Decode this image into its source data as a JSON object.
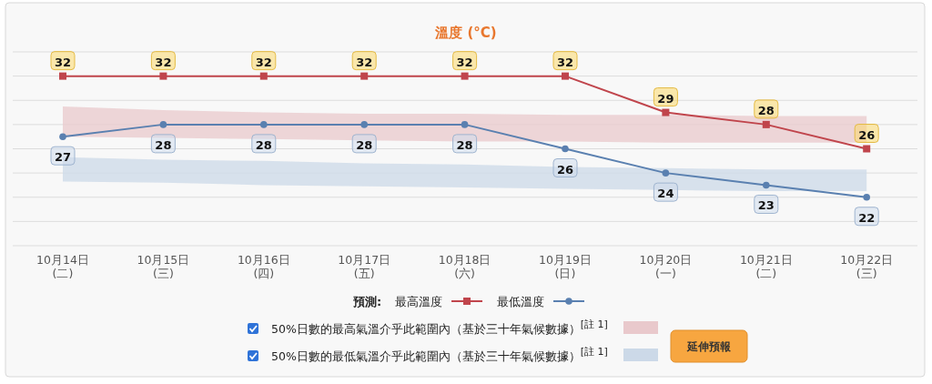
{
  "chart_data": {
    "type": "line",
    "title": "溫度 (°C)",
    "categories": [
      "10月14日\n(二)",
      "10月15日\n(三)",
      "10月16日\n(四)",
      "10月17日\n(五)",
      "10月18日\n(六)",
      "10月19日\n(日)",
      "10月20日\n(一)",
      "10月21日\n(二)",
      "10月22日\n(三)"
    ],
    "ylim": [
      18,
      34
    ],
    "yticks": [
      {
        "value": 18,
        "label": null
      },
      {
        "value": 20,
        "label": null
      },
      {
        "value": 22,
        "label": null
      },
      {
        "value": 24,
        "label": null
      },
      {
        "value": 26,
        "label": null
      },
      {
        "value": 28,
        "label": null
      },
      {
        "value": 30,
        "label": null
      },
      {
        "value": 32,
        "label": null
      },
      {
        "value": 34,
        "label": null
      }
    ],
    "tick_labels": "x",
    "grid": "y",
    "legend": "bottom",
    "legend_title": "預測:",
    "data_labels": true,
    "series": [
      {
        "type": "area",
        "name": "50%日數的最高氣溫介乎此範圍內（基於三十年氣候數據）$^{[註 1]}$",
        "color": "#e9c9cc",
        "values": [
          null,
          null,
          null,
          null,
          null,
          null,
          null,
          null,
          null
        ],
        "lower": [
          27.0,
          26.9,
          26.8,
          26.7,
          26.6,
          26.6,
          26.5,
          26.5,
          26.5
        ],
        "upper": [
          29.5,
          29.2,
          29.0,
          28.9,
          28.9,
          28.8,
          28.8,
          28.7,
          28.7
        ]
      },
      {
        "type": "area",
        "name": "50%日數的最低氣溫介乎此範圍內（基於三十年氣候數據）$^{[註 1]}$",
        "color": "#ccd9e8",
        "values": [
          null,
          null,
          null,
          null,
          null,
          null,
          null,
          null,
          null
        ],
        "lower": [
          23.3,
          23.2,
          23.0,
          22.9,
          22.8,
          22.7,
          22.6,
          22.5,
          22.5
        ],
        "upper": [
          25.3,
          25.1,
          25.0,
          24.8,
          24.7,
          24.5,
          24.4,
          24.3,
          24.3
        ]
      },
      {
        "name": "最高溫度",
        "color": "#c0454c",
        "marker": "square",
        "values": [
          32,
          32,
          32,
          32,
          32,
          32,
          29,
          28,
          26
        ]
      },
      {
        "name": "最低溫度",
        "color": "#5a80b0",
        "marker": "circle",
        "values": [
          27,
          28,
          28,
          28,
          28,
          26,
          24,
          23,
          22
        ]
      }
    ],
    "annotations": [
      "延伸預報"
    ]
  }
}
